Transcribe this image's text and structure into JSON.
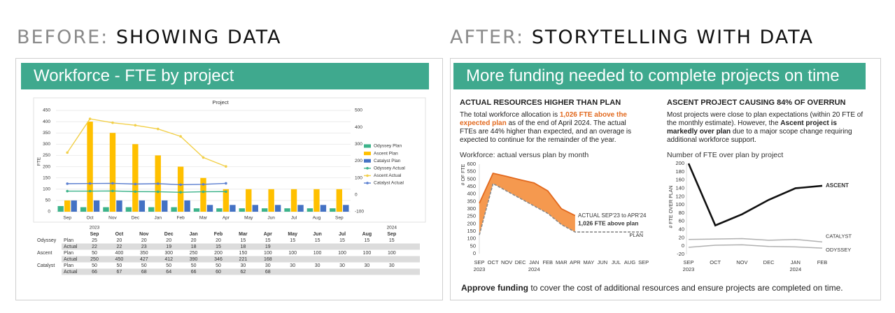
{
  "headers": {
    "before": {
      "label": "BEFORE:",
      "title": "SHOWING DATA"
    },
    "after": {
      "label": "AFTER:",
      "title": "STORYTELLING WITH DATA"
    }
  },
  "before_panel": {
    "banner": "Workforce - FTE by project",
    "table": {
      "years": [
        "2023",
        null,
        null,
        null,
        null,
        null,
        null,
        null,
        null,
        null,
        null,
        null,
        "2024"
      ],
      "months": [
        "Sep",
        "Oct",
        "Nov",
        "Dec",
        "Jan",
        "Feb",
        "Mar",
        "Apr",
        "May",
        "Jun",
        "Jul",
        "Aug",
        "Sep"
      ],
      "groups": [
        {
          "project": "Odyssey",
          "rows": [
            {
              "kind": "Plan",
              "cells": [
                25,
                20,
                20,
                20,
                20,
                20,
                15,
                15,
                15,
                15,
                15,
                15,
                15
              ]
            },
            {
              "kind": "Actual",
              "cells": [
                22,
                22,
                23,
                19,
                18,
                15,
                18,
                19,
                null,
                null,
                null,
                null,
                null
              ]
            }
          ]
        },
        {
          "project": "Ascent",
          "rows": [
            {
              "kind": "Plan",
              "cells": [
                50,
                400,
                350,
                300,
                250,
                200,
                150,
                100,
                100,
                100,
                100,
                100,
                100
              ]
            },
            {
              "kind": "Actual",
              "cells": [
                250,
                450,
                427,
                412,
                390,
                346,
                221,
                168,
                null,
                null,
                null,
                null,
                null
              ]
            }
          ]
        },
        {
          "project": "Catalyst",
          "rows": [
            {
              "kind": "Plan",
              "cells": [
                50,
                50,
                50,
                50,
                50,
                50,
                30,
                30,
                30,
                30,
                30,
                30,
                30
              ]
            },
            {
              "kind": "Actual",
              "cells": [
                66,
                67,
                68,
                64,
                66,
                60,
                62,
                68,
                null,
                null,
                null,
                null,
                null
              ]
            }
          ]
        }
      ]
    }
  },
  "after_panel": {
    "banner": "More funding needed to complete projects on time",
    "left": {
      "heading": "ACTUAL RESOURCES HIGHER THAN PLAN",
      "text": [
        {
          "text": "The total workforce allocation is "
        },
        {
          "text": "1,026 FTE above the expected plan",
          "style": "highlight"
        },
        {
          "text": " as of the end of April 2024. The actual FTEs are 44% higher than expected, and an overage is expected to continue for the remainder of the year."
        }
      ]
    },
    "right": {
      "heading": "ASCENT PROJECT CAUSING 84% OF OVERRUN",
      "text": [
        {
          "text": "Most projects were close to plan expectations (within 20 FTE of the monthly estimate). However, the "
        },
        {
          "text": "Ascent project is markedly over plan",
          "style": "bold"
        },
        {
          "text": " due to a major scope change requiring additional workforce support."
        }
      ]
    },
    "footer": [
      {
        "text": "Approve funding",
        "style": "bold"
      },
      {
        "text": " to cover the cost of additional resources and ensure projects are completed on time."
      }
    ]
  },
  "chart_data": [
    {
      "type": "combo",
      "title": "Project",
      "y_label": "FTE",
      "categories": [
        "Sep",
        "Oct",
        "Nov",
        "Dec",
        "Jan",
        "Feb",
        "Mar",
        "Apr",
        "May",
        "Jun",
        "Jul",
        "Aug",
        "Sep"
      ],
      "ylim": [
        0,
        450
      ],
      "yticks": [
        0,
        50,
        100,
        150,
        200,
        250,
        300,
        350,
        400,
        450
      ],
      "y2lim": [
        -100,
        500
      ],
      "y2ticks": [
        -100,
        0,
        100,
        200,
        300,
        400,
        500
      ],
      "grid": true,
      "legend": "right",
      "series": [
        {
          "name": "Odyssey Plan",
          "kind": "bar",
          "color": "#3cb38a",
          "values": [
            25,
            20,
            20,
            20,
            20,
            20,
            15,
            15,
            15,
            15,
            15,
            15,
            15
          ]
        },
        {
          "name": "Ascent Plan",
          "kind": "bar",
          "color": "#ffc000",
          "values": [
            50,
            400,
            350,
            300,
            250,
            200,
            150,
            100,
            100,
            100,
            100,
            100,
            100
          ]
        },
        {
          "name": "Catalyst Plan",
          "kind": "bar",
          "color": "#4472c4",
          "values": [
            50,
            50,
            50,
            50,
            50,
            50,
            30,
            30,
            30,
            30,
            30,
            30,
            30
          ]
        },
        {
          "name": "Odyssey Actual",
          "kind": "line",
          "axis": "y2",
          "color": "#3cb38a",
          "values": [
            22,
            22,
            23,
            19,
            18,
            15,
            18,
            19,
            null,
            null,
            null,
            null,
            null
          ]
        },
        {
          "name": "Ascent Actual",
          "kind": "line",
          "axis": "y2",
          "color": "#f2d04a",
          "values": [
            250,
            450,
            427,
            412,
            390,
            346,
            221,
            168,
            null,
            null,
            null,
            null,
            null
          ]
        },
        {
          "name": "Catalyst Actual",
          "kind": "line",
          "axis": "y2",
          "color": "#5b7fd0",
          "values": [
            66,
            67,
            68,
            64,
            66,
            60,
            62,
            68,
            null,
            null,
            null,
            null,
            null
          ]
        }
      ]
    },
    {
      "type": "area",
      "title": "Workforce: actual versus plan by month",
      "y_label": "# OF FTE",
      "categories": [
        "SEP",
        "OCT",
        "NOV",
        "DEC",
        "JAN",
        "FEB",
        "MAR",
        "APR",
        "MAY",
        "JUN",
        "JUL",
        "AUG",
        "SEP"
      ],
      "year_labels": [
        "2023",
        null,
        null,
        null,
        "2024",
        null,
        null,
        null,
        null,
        null,
        null,
        null,
        null
      ],
      "ylim": [
        0,
        600
      ],
      "yticks": [
        0,
        50,
        100,
        150,
        200,
        250,
        300,
        350,
        400,
        450,
        500,
        550,
        600
      ],
      "fill_color": "#f5994f",
      "annotations": [
        "ACTUAL SEP'23 to APR'24",
        "1,026 FTE above plan"
      ],
      "series": [
        {
          "color": "#e2691e",
          "values": [
            338,
            539,
            518,
            495,
            474,
            421,
            301,
            255,
            null,
            null,
            null,
            null,
            null
          ]
        },
        {
          "name": "PLAN",
          "color": "#8a8a8a",
          "dashed": true,
          "values": [
            125,
            470,
            420,
            370,
            320,
            270,
            195,
            145,
            145,
            145,
            145,
            145,
            145
          ]
        }
      ]
    },
    {
      "type": "line",
      "title": "Number of FTE over plan by project",
      "y_label": "# FTE OVER PLAN",
      "categories": [
        "SEP",
        "OCT",
        "NOV",
        "DEC",
        "JAN",
        "FEB"
      ],
      "year_labels": [
        "2023",
        null,
        null,
        null,
        "2024",
        null
      ],
      "ylim": [
        -20,
        200
      ],
      "yticks": [
        -20,
        0,
        20,
        40,
        60,
        80,
        100,
        120,
        140,
        160,
        180,
        200
      ],
      "series": [
        {
          "name": "ASCENT",
          "color": "#111111",
          "values": [
            200,
            50,
            77,
            112,
            140,
            146
          ]
        },
        {
          "name": "CATALYST",
          "color": "#b0b0b0",
          "values": [
            16,
            17,
            18,
            14,
            16,
            10
          ]
        },
        {
          "name": "ODYSSEY",
          "color": "#b0b0b0",
          "values": [
            -3,
            2,
            3,
            -1,
            -2,
            -5
          ]
        }
      ]
    }
  ]
}
